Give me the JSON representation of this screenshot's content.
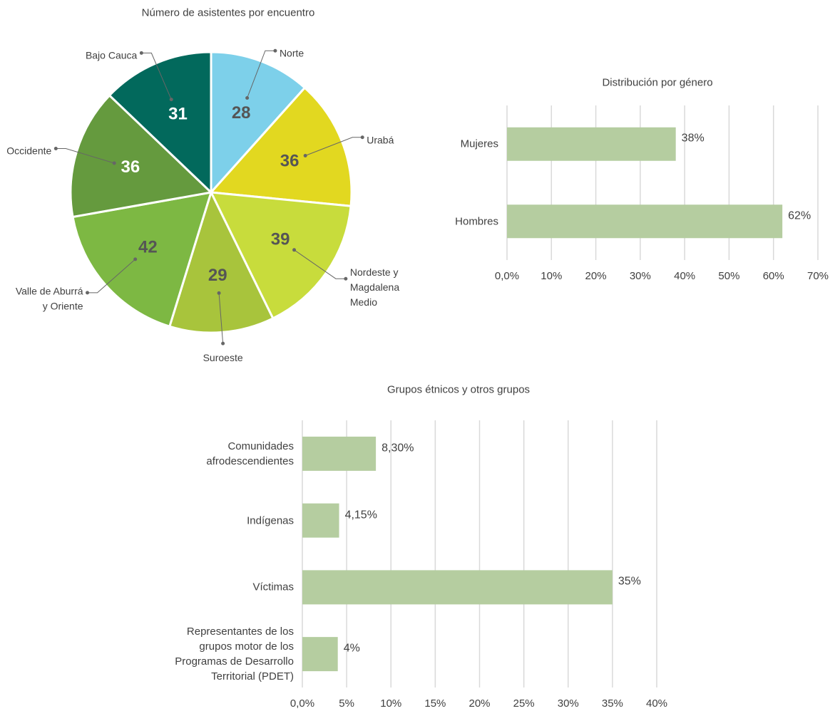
{
  "chart_data": [
    {
      "type": "pie",
      "title": "Número de asistentes por encuentro",
      "categories": [
        "Norte",
        "Urabá",
        "Nordeste y Magdalena Medio",
        "Suroeste",
        "Valle de Aburrá y Oriente",
        "Occidente",
        "Bajo Cauca"
      ],
      "values": [
        28,
        36,
        39,
        29,
        42,
        36,
        31
      ],
      "colors": [
        "#7dd0ea",
        "#e2d820",
        "#c8dc3c",
        "#a8c43c",
        "#7db843",
        "#659a3e",
        "#02695c"
      ]
    },
    {
      "type": "barh",
      "title": "Distribución por género",
      "categories": [
        "Mujeres",
        "Hombres"
      ],
      "values": [
        38,
        62
      ],
      "value_labels": [
        "38%",
        "62%"
      ],
      "color": "#b5cda0",
      "xlim": [
        0,
        70
      ],
      "xticks": [
        {
          "value": 0,
          "label": "0,0%"
        },
        {
          "value": 10,
          "label": "10%"
        },
        {
          "value": 20,
          "label": "20%"
        },
        {
          "value": 30,
          "label": "30%"
        },
        {
          "value": 40,
          "label": "40%"
        },
        {
          "value": 50,
          "label": "50%"
        },
        {
          "value": 60,
          "label": "60%"
        },
        {
          "value": 70,
          "label": "70%"
        }
      ],
      "grid": true
    },
    {
      "type": "barh",
      "title": "Grupos étnicos y otros grupos",
      "categories": [
        "Comunidades afrodescendientes",
        "Indígenas",
        "Víctimas",
        "Representantes de los grupos motor de los Programas de Desarrollo Territorial (PDET)"
      ],
      "values": [
        8.3,
        4.15,
        35,
        4
      ],
      "value_labels": [
        "8,30%",
        "4,15%",
        "35%",
        "4%"
      ],
      "color": "#b5cda0",
      "xlim": [
        0,
        40
      ],
      "xticks": [
        {
          "value": 0,
          "label": "0,0%"
        },
        {
          "value": 5,
          "label": "5%"
        },
        {
          "value": 10,
          "label": "10%"
        },
        {
          "value": 15,
          "label": "15%"
        },
        {
          "value": 20,
          "label": "20%"
        },
        {
          "value": 25,
          "label": "25%"
        },
        {
          "value": 30,
          "label": "30%"
        },
        {
          "value": 35,
          "label": "35%"
        },
        {
          "value": 40,
          "label": "40%"
        }
      ],
      "grid": true
    }
  ]
}
